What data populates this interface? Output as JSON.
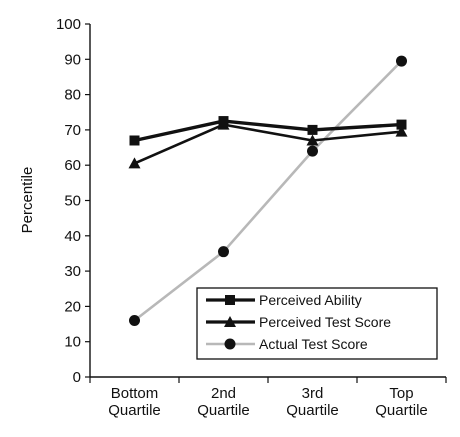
{
  "chart_data": {
    "type": "line",
    "title": "",
    "xlabel": "",
    "ylabel": "Percentile",
    "ylim": [
      0,
      100
    ],
    "yticks": [
      "0",
      "10",
      "20",
      "30",
      "40",
      "50",
      "60",
      "70",
      "80",
      "90",
      "100"
    ],
    "categories": [
      [
        "Bottom",
        "Quartile"
      ],
      [
        "2nd",
        "Quartile"
      ],
      [
        "3rd",
        "Quartile"
      ],
      [
        "Top",
        "Quartile"
      ]
    ],
    "grid": false,
    "legend_position": "bottom-right",
    "series": [
      {
        "name": "Perceived Ability",
        "values": [
          67,
          72.5,
          70,
          71.5
        ],
        "marker": "square",
        "color": "#111111"
      },
      {
        "name": "Perceived Test Score",
        "values": [
          60.5,
          71.5,
          67,
          69.5
        ],
        "marker": "triangle",
        "color": "#111111"
      },
      {
        "name": "Actual Test Score",
        "values": [
          16,
          35.5,
          64,
          89.5
        ],
        "marker": "circle",
        "color": "#b8b8b8",
        "marker_color": "#111111"
      }
    ]
  }
}
